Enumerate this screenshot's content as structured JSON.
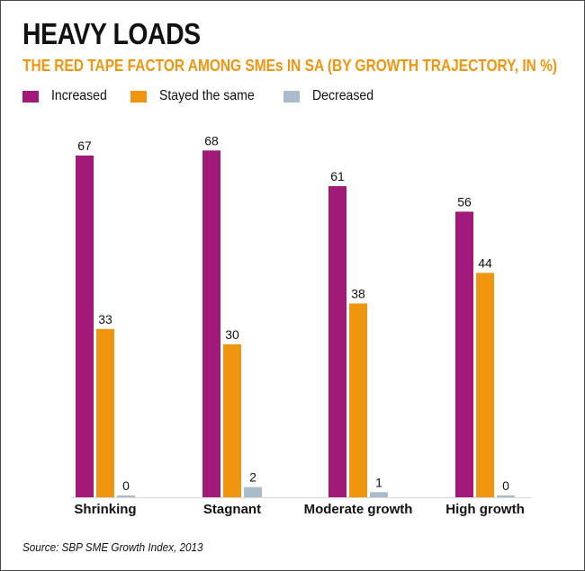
{
  "title": "HEAVY LOADS",
  "subtitle": "THE RED TAPE FACTOR AMONG SMEs IN SA (BY GROWTH TRAJECTORY, IN %)",
  "source": "Source: SBP SME Growth Index, 2013",
  "colors": {
    "increased": "#a3197a",
    "stayed": "#f0950f",
    "decreased": "#a9bccb",
    "title": "#111111",
    "subtitle": "#f0950f"
  },
  "legend": [
    {
      "label": "Increased",
      "color": "#a3197a"
    },
    {
      "label": "Stayed the same",
      "color": "#f0950f"
    },
    {
      "label": "Decreased",
      "color": "#a9bccb"
    }
  ],
  "chart_data": {
    "type": "bar",
    "title": "HEAVY LOADS",
    "subtitle": "THE RED TAPE FACTOR AMONG SMEs IN SA (BY GROWTH TRAJECTORY, IN %)",
    "categories": [
      "Shrinking",
      "Stagnant",
      "Moderate growth",
      "High growth"
    ],
    "series": [
      {
        "name": "Increased",
        "values": [
          67,
          68,
          61,
          56
        ],
        "color": "#a3197a"
      },
      {
        "name": "Stayed the same",
        "values": [
          33,
          30,
          38,
          44
        ],
        "color": "#f0950f"
      },
      {
        "name": "Decreased",
        "values": [
          0,
          2,
          1,
          0
        ],
        "color": "#a9bccb"
      }
    ],
    "xlabel": "",
    "ylabel": "",
    "ylim": [
      0,
      70
    ],
    "grid": false,
    "legend_position": "top-left",
    "data_labels": true
  }
}
